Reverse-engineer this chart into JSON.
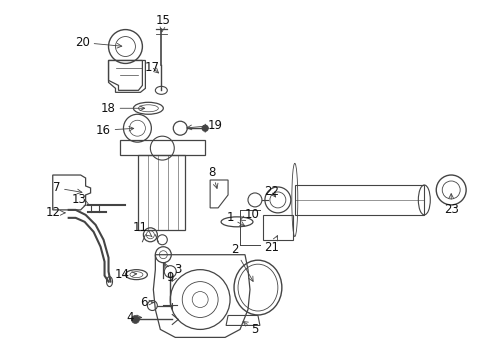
{
  "bg_color": "#ffffff",
  "line_color": "#444444",
  "text_color": "#111111",
  "figsize": [
    4.9,
    3.6
  ],
  "dpi": 100,
  "label_fontsize": 8.5,
  "arrow_lw": 0.6,
  "part_lw": 0.9
}
